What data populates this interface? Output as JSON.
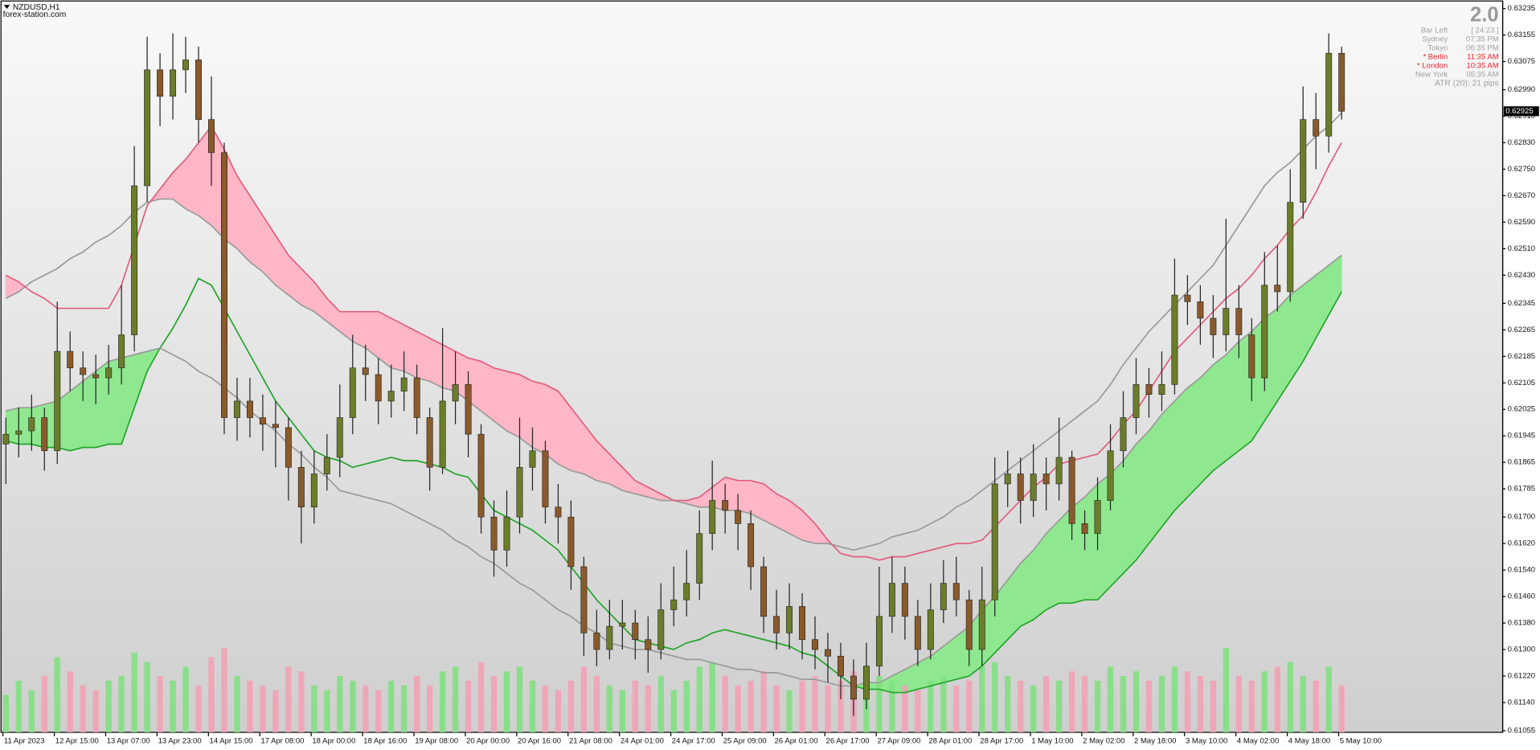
{
  "chart_data": {
    "type": "candlestick",
    "symbol": "NZDUSD,H1",
    "source": "forex-station.com",
    "version": "2.0",
    "panel": [
      {
        "label": "Bar Left",
        "value": "[ 24:23 ]",
        "color": "#a0a0a0"
      },
      {
        "label": "Sydney",
        "value": "07:35 PM",
        "color": "#a0a0a0"
      },
      {
        "label": "Tokyo",
        "value": "06:35 PM",
        "color": "#a0a0a0"
      },
      {
        "label": "* Berlin",
        "value": "11:35 AM",
        "color": "#e8202a"
      },
      {
        "label": "* London",
        "value": "10:35 AM",
        "color": "#e8202a"
      },
      {
        "label": "New York",
        "value": "05:35 AM",
        "color": "#a0a0a0"
      }
    ],
    "atr": "ATR (20): 21 pips",
    "current_price": 0.62925,
    "ylim": [
      0.6105,
      0.6324
    ],
    "yticks": [
      0.63235,
      0.63155,
      0.63075,
      {
        "value": 0.6299,
        "label": "0.62990"
      },
      {
        "value": 0.6291,
        "label": "0.62910"
      },
      {
        "value": 0.6283,
        "label": "0.62830"
      },
      {
        "value": 0.6275,
        "label": "0.62750"
      },
      {
        "value": 0.6267,
        "label": "0.62670"
      },
      {
        "value": 0.6259,
        "label": "0.62590"
      },
      {
        "value": 0.6251,
        "label": "0.62510"
      },
      {
        "value": 0.6243,
        "label": "0.62430"
      },
      0.62345,
      0.62265,
      0.62185,
      0.62105,
      0.62025,
      0.61945,
      0.61865,
      0.61785,
      {
        "value": 0.617,
        "label": "0.61700"
      },
      {
        "value": 0.6162,
        "label": "0.61620"
      },
      {
        "value": 0.6154,
        "label": "0.61540"
      },
      {
        "value": 0.6146,
        "label": "0.61460"
      },
      {
        "value": 0.6138,
        "label": "0.61380"
      },
      {
        "value": 0.613,
        "label": "0.61300"
      },
      {
        "value": 0.6122,
        "label": "0.61220"
      },
      {
        "value": 0.6114,
        "label": "0.61140"
      },
      0.61055
    ],
    "categories": [
      "11 Apr 2023",
      null,
      null,
      null,
      "12 Apr 15:00",
      null,
      null,
      null,
      "13 Apr 07:00",
      null,
      null,
      null,
      "13 Apr 23:00",
      null,
      null,
      null,
      "14 Apr 15:00",
      null,
      null,
      null,
      "17 Apr 08:00",
      null,
      null,
      null,
      "18 Apr 00:00",
      null,
      null,
      null,
      "18 Apr 16:00",
      null,
      null,
      null,
      "19 Apr 08:00",
      null,
      null,
      null,
      "20 Apr 00:00",
      null,
      null,
      null,
      "20 Apr 16:00",
      null,
      null,
      null,
      "21 Apr 08:00",
      null,
      null,
      null,
      "24 Apr 01:00",
      null,
      null,
      null,
      "24 Apr 17:00",
      null,
      null,
      null,
      "25 Apr 09:00",
      null,
      null,
      null,
      "26 Apr 01:00",
      null,
      null,
      null,
      "26 Apr 17:00",
      null,
      null,
      null,
      "27 Apr 09:00",
      null,
      null,
      null,
      "28 Apr 01:00",
      null,
      null,
      null,
      "28 Apr 17:00",
      null,
      null,
      null,
      "1 May 10:00",
      null,
      null,
      null,
      "2 May 02:00",
      null,
      null,
      null,
      "2 May 18:00",
      null,
      null,
      null,
      "3 May 10:00",
      null,
      null,
      null,
      "4 May 02:00",
      null,
      null,
      null,
      "4 May 18:00",
      null,
      null,
      null,
      "5 May 10:00"
    ],
    "open": [
      0.6192,
      0.6195,
      0.6196,
      0.62,
      0.619,
      0.622,
      0.6215,
      0.6213,
      0.6212,
      0.6215,
      0.6225,
      0.627,
      0.6305,
      0.6297,
      0.6305,
      0.6308,
      0.629,
      0.628,
      0.62,
      0.6205,
      0.62,
      0.6198,
      0.6197,
      0.6185,
      0.6173,
      0.6183,
      0.6188,
      0.62,
      0.6215,
      0.6213,
      0.6205,
      0.6208,
      0.6212,
      0.62,
      0.6185,
      0.6205,
      0.621,
      0.6195,
      0.617,
      0.616,
      0.617,
      0.6185,
      0.619,
      0.6173,
      0.617,
      0.6155,
      0.6135,
      0.613,
      0.6137,
      0.6138,
      0.6133,
      0.613,
      0.6142,
      0.6145,
      0.615,
      0.6165,
      0.6175,
      0.6172,
      0.6168,
      0.6155,
      0.614,
      0.6135,
      0.6143,
      0.6133,
      0.613,
      0.6128,
      0.6122,
      0.6115,
      0.6125,
      0.614,
      0.615,
      0.614,
      0.613,
      0.6142,
      0.615,
      0.6145,
      0.613,
      0.6145,
      0.618,
      0.6183,
      0.6175,
      0.6183,
      0.618,
      0.6188,
      0.6168,
      0.6165,
      0.6175,
      0.619,
      0.62,
      0.621,
      0.6207,
      0.621,
      0.6237,
      0.6235,
      0.623,
      0.6225,
      0.6233,
      0.6225,
      0.6212,
      0.624,
      0.6238,
      0.6265,
      0.629,
      0.6285,
      0.631
    ],
    "high": [
      0.62,
      0.6203,
      0.6207,
      0.6203,
      0.6235,
      0.6226,
      0.622,
      0.6219,
      0.6222,
      0.624,
      0.6282,
      0.6315,
      0.631,
      0.6316,
      0.6315,
      0.6312,
      0.6303,
      0.6283,
      0.6212,
      0.6212,
      0.6207,
      0.6205,
      0.62,
      0.619,
      0.619,
      0.6195,
      0.621,
      0.6225,
      0.6222,
      0.6218,
      0.6216,
      0.622,
      0.6216,
      0.6203,
      0.6227,
      0.622,
      0.6214,
      0.6198,
      0.6175,
      0.6178,
      0.62,
      0.6197,
      0.6193,
      0.618,
      0.6175,
      0.6158,
      0.6142,
      0.6145,
      0.6145,
      0.6142,
      0.614,
      0.615,
      0.6155,
      0.616,
      0.6172,
      0.6187,
      0.618,
      0.6177,
      0.6172,
      0.6158,
      0.6148,
      0.615,
      0.6147,
      0.614,
      0.6135,
      0.6132,
      0.6127,
      0.6132,
      0.6155,
      0.6158,
      0.6155,
      0.6145,
      0.615,
      0.6157,
      0.6158,
      0.6148,
      0.6155,
      0.6188,
      0.619,
      0.6188,
      0.6192,
      0.6188,
      0.62,
      0.619,
      0.6172,
      0.6182,
      0.6198,
      0.6208,
      0.6218,
      0.6215,
      0.622,
      0.6248,
      0.6243,
      0.624,
      0.6237,
      0.626,
      0.624,
      0.623,
      0.625,
      0.6252,
      0.6275,
      0.63,
      0.6298,
      0.6316,
      0.6312
    ],
    "low": [
      0.618,
      0.6188,
      0.619,
      0.6184,
      0.6186,
      0.6208,
      0.6205,
      0.6204,
      0.6207,
      0.621,
      0.622,
      0.6265,
      0.6288,
      0.629,
      0.6298,
      0.6283,
      0.627,
      0.6195,
      0.6193,
      0.6194,
      0.619,
      0.6185,
      0.6175,
      0.6162,
      0.6168,
      0.6178,
      0.6182,
      0.6195,
      0.6205,
      0.6198,
      0.62,
      0.6202,
      0.6195,
      0.6178,
      0.6183,
      0.6198,
      0.6188,
      0.6165,
      0.6152,
      0.6155,
      0.6165,
      0.6178,
      0.6168,
      0.6162,
      0.6148,
      0.6128,
      0.6125,
      0.6127,
      0.613,
      0.6127,
      0.6123,
      0.6127,
      0.6137,
      0.614,
      0.6145,
      0.616,
      0.6165,
      0.616,
      0.6148,
      0.6135,
      0.613,
      0.613,
      0.6127,
      0.6124,
      0.612,
      0.6115,
      0.611,
      0.6112,
      0.6122,
      0.6135,
      0.6133,
      0.6125,
      0.6127,
      0.6138,
      0.614,
      0.6125,
      0.6125,
      0.614,
      0.6173,
      0.6168,
      0.617,
      0.6172,
      0.6175,
      0.6163,
      0.616,
      0.616,
      0.6172,
      0.6185,
      0.6195,
      0.62,
      0.6202,
      0.6207,
      0.6228,
      0.6222,
      0.6218,
      0.622,
      0.6218,
      0.6205,
      0.6208,
      0.6232,
      0.6235,
      0.626,
      0.6275,
      0.628,
      0.629
    ],
    "close": [
      0.6195,
      0.6196,
      0.62,
      0.619,
      0.622,
      0.6215,
      0.6213,
      0.6212,
      0.6215,
      0.6225,
      0.627,
      0.6305,
      0.6297,
      0.6305,
      0.6308,
      0.629,
      0.628,
      0.62,
      0.6205,
      0.62,
      0.6198,
      0.6197,
      0.6185,
      0.6173,
      0.6183,
      0.6188,
      0.62,
      0.6215,
      0.6213,
      0.6205,
      0.6208,
      0.6212,
      0.62,
      0.6185,
      0.6205,
      0.621,
      0.6195,
      0.617,
      0.616,
      0.617,
      0.6185,
      0.619,
      0.6173,
      0.617,
      0.6155,
      0.6135,
      0.613,
      0.6137,
      0.6138,
      0.6133,
      0.613,
      0.6142,
      0.6145,
      0.615,
      0.6165,
      0.6175,
      0.6172,
      0.6168,
      0.6155,
      0.614,
      0.6135,
      0.6143,
      0.6133,
      0.613,
      0.6128,
      0.6122,
      0.6115,
      0.6125,
      0.614,
      0.615,
      0.614,
      0.613,
      0.6142,
      0.615,
      0.6145,
      0.613,
      0.6145,
      0.618,
      0.6183,
      0.6175,
      0.6183,
      0.618,
      0.6188,
      0.6168,
      0.6165,
      0.6175,
      0.619,
      0.62,
      0.621,
      0.6207,
      0.621,
      0.6237,
      0.6235,
      0.623,
      0.6225,
      0.6233,
      0.6225,
      0.6212,
      0.624,
      0.6238,
      0.6265,
      0.629,
      0.6285,
      0.631,
      0.62925
    ],
    "up_color": "#6b7d2a",
    "down_color": "#8a5a2b",
    "wick_color": "#222222",
    "volume": [
      40,
      55,
      45,
      60,
      80,
      65,
      50,
      45,
      55,
      60,
      85,
      75,
      60,
      55,
      70,
      50,
      80,
      90,
      60,
      55,
      50,
      45,
      70,
      65,
      50,
      45,
      60,
      55,
      50,
      45,
      55,
      50,
      60,
      50,
      65,
      70,
      55,
      75,
      60,
      65,
      70,
      55,
      50,
      45,
      55,
      70,
      60,
      50,
      45,
      55,
      50,
      60,
      45,
      55,
      70,
      75,
      60,
      50,
      55,
      65,
      50,
      45,
      55,
      60,
      50,
      55,
      65,
      70,
      60,
      55,
      50,
      45,
      55,
      60,
      50,
      55,
      70,
      75,
      60,
      55,
      50,
      60,
      55,
      65,
      60,
      55,
      70,
      60,
      65,
      55,
      60,
      70,
      65,
      60,
      55,
      90,
      60,
      55,
      65,
      70,
      75,
      60,
      55,
      70,
      50
    ],
    "volume_up_color": "#7ee07e",
    "volume_down_color": "#f4a0b4",
    "lines": [
      {
        "color": "#9a9a9a",
        "values": [
          0.6236,
          0.6238,
          0.6241,
          0.6243,
          0.6245,
          0.6248,
          0.625,
          0.6253,
          0.6255,
          0.6258,
          0.6262,
          0.6265,
          0.6266,
          0.6266,
          0.6263,
          0.6261,
          0.6258,
          0.6254,
          0.6251,
          0.6247,
          0.6244,
          0.624,
          0.6237,
          0.6234,
          0.6232,
          0.6229,
          0.6226,
          0.6223,
          0.6221,
          0.6218,
          0.6215,
          0.6214,
          0.6212,
          0.6211,
          0.6209,
          0.6208,
          0.6205,
          0.6202,
          0.6199,
          0.6196,
          0.6194,
          0.6191,
          0.6189,
          0.6186,
          0.6184,
          0.6183,
          0.6181,
          0.618,
          0.6178,
          0.6177,
          0.6176,
          0.6175,
          0.6175,
          0.6174,
          0.6173,
          0.6173,
          0.6172,
          0.6172,
          0.6171,
          0.6169,
          0.6167,
          0.6165,
          0.6163,
          0.6162,
          0.6162,
          0.6161,
          0.616,
          0.6161,
          0.6162,
          0.6164,
          0.6165,
          0.6166,
          0.6168,
          0.617,
          0.6173,
          0.6175,
          0.6178,
          0.6181,
          0.6184,
          0.6187,
          0.619,
          0.6193,
          0.6196,
          0.6199,
          0.6202,
          0.6205,
          0.621,
          0.6216,
          0.6221,
          0.6226,
          0.623,
          0.6234,
          0.6238,
          0.6242,
          0.6246,
          0.6252,
          0.6258,
          0.6264,
          0.627,
          0.6274,
          0.6277,
          0.6281,
          0.6285,
          0.6288,
          0.6292
        ]
      },
      {
        "color": "#e0607e",
        "values": [
          0.6243,
          0.6241,
          0.6238,
          0.6236,
          0.6233,
          0.6233,
          0.6233,
          0.6233,
          0.6233,
          0.624,
          0.6252,
          0.6264,
          0.6269,
          0.6274,
          0.6278,
          0.6283,
          0.6288,
          0.6281,
          0.6273,
          0.6267,
          0.6261,
          0.6255,
          0.6249,
          0.6245,
          0.6241,
          0.6236,
          0.6232,
          0.6232,
          0.6232,
          0.6232,
          0.623,
          0.6228,
          0.6226,
          0.6224,
          0.6222,
          0.622,
          0.6218,
          0.6217,
          0.6215,
          0.6214,
          0.6213,
          0.6211,
          0.621,
          0.6208,
          0.6203,
          0.6198,
          0.6193,
          0.6189,
          0.6185,
          0.6181,
          0.6179,
          0.6177,
          0.6175,
          0.6175,
          0.6176,
          0.6179,
          0.6182,
          0.6181,
          0.6181,
          0.618,
          0.6177,
          0.6175,
          0.6172,
          0.6168,
          0.6163,
          0.6159,
          0.6158,
          0.6158,
          0.6157,
          0.6158,
          0.6158,
          0.6159,
          0.616,
          0.6161,
          0.6162,
          0.6162,
          0.6163,
          0.6167,
          0.6171,
          0.6175,
          0.6179,
          0.6182,
          0.6186,
          0.6187,
          0.6188,
          0.6189,
          0.6193,
          0.6198,
          0.6202,
          0.6208,
          0.6214,
          0.622,
          0.6224,
          0.6228,
          0.6232,
          0.6236,
          0.6239,
          0.6243,
          0.6248,
          0.6252,
          0.6257,
          0.6261,
          0.6268,
          0.6276,
          0.6283
        ]
      },
      {
        "color": "#22a52a",
        "values": [
          0.6193,
          0.6192,
          0.6192,
          0.6191,
          0.6191,
          0.619,
          0.6191,
          0.6191,
          0.6192,
          0.6192,
          0.6203,
          0.6214,
          0.6221,
          0.6227,
          0.6234,
          0.6242,
          0.624,
          0.6233,
          0.6226,
          0.6219,
          0.6212,
          0.6205,
          0.62,
          0.6195,
          0.619,
          0.6188,
          0.6187,
          0.6185,
          0.6186,
          0.6187,
          0.6188,
          0.6187,
          0.6187,
          0.6186,
          0.6185,
          0.6183,
          0.6182,
          0.6177,
          0.6172,
          0.617,
          0.6168,
          0.6166,
          0.6163,
          0.616,
          0.6155,
          0.615,
          0.6145,
          0.6141,
          0.6137,
          0.6133,
          0.6132,
          0.6131,
          0.613,
          0.6132,
          0.6133,
          0.6135,
          0.6136,
          0.6135,
          0.6134,
          0.6133,
          0.6132,
          0.6131,
          0.6129,
          0.6128,
          0.6125,
          0.6122,
          0.6119,
          0.6118,
          0.6118,
          0.6117,
          0.6117,
          0.6118,
          0.6119,
          0.612,
          0.6121,
          0.6122,
          0.6125,
          0.6129,
          0.6133,
          0.6137,
          0.6139,
          0.6142,
          0.6144,
          0.6144,
          0.6145,
          0.6145,
          0.6149,
          0.6153,
          0.6157,
          0.6162,
          0.6167,
          0.6172,
          0.6176,
          0.618,
          0.6184,
          0.6187,
          0.619,
          0.6193,
          0.6199,
          0.6205,
          0.6211,
          0.6217,
          0.6224,
          0.6231,
          0.6238
        ]
      },
      {
        "color": "#9a9a9a",
        "values": [
          0.6202,
          0.6203,
          0.6203,
          0.6204,
          0.6205,
          0.6208,
          0.6211,
          0.6214,
          0.6217,
          0.6218,
          0.6219,
          0.622,
          0.6221,
          0.6219,
          0.6217,
          0.6214,
          0.6212,
          0.6209,
          0.6206,
          0.6202,
          0.6199,
          0.6196,
          0.6192,
          0.6189,
          0.6185,
          0.6182,
          0.6178,
          0.6177,
          0.6176,
          0.6175,
          0.6174,
          0.6172,
          0.617,
          0.6168,
          0.6166,
          0.6163,
          0.6161,
          0.6158,
          0.6156,
          0.6153,
          0.615,
          0.6148,
          0.6145,
          0.6142,
          0.614,
          0.6137,
          0.6135,
          0.6132,
          0.6131,
          0.613,
          0.613,
          0.6129,
          0.6128,
          0.6127,
          0.6127,
          0.6126,
          0.6125,
          0.6124,
          0.6124,
          0.6123,
          0.6123,
          0.6122,
          0.6121,
          0.6121,
          0.612,
          0.6119,
          0.6119,
          0.612,
          0.612,
          0.6122,
          0.6124,
          0.6126,
          0.6128,
          0.6131,
          0.6134,
          0.6137,
          0.6142,
          0.6146,
          0.6151,
          0.6156,
          0.616,
          0.6165,
          0.6169,
          0.6173,
          0.6176,
          0.618,
          0.6183,
          0.6187,
          0.6192,
          0.6196,
          0.6201,
          0.6205,
          0.6209,
          0.6212,
          0.6216,
          0.6219,
          0.6223,
          0.6226,
          0.623,
          0.6233,
          0.6237,
          0.624,
          0.6243,
          0.6246,
          0.6249
        ]
      }
    ],
    "fills": [
      {
        "between": [
          1,
          0
        ],
        "color": "#ffb6c6"
      },
      {
        "between": [
          3,
          2
        ],
        "color": "#8fe88f"
      }
    ]
  }
}
